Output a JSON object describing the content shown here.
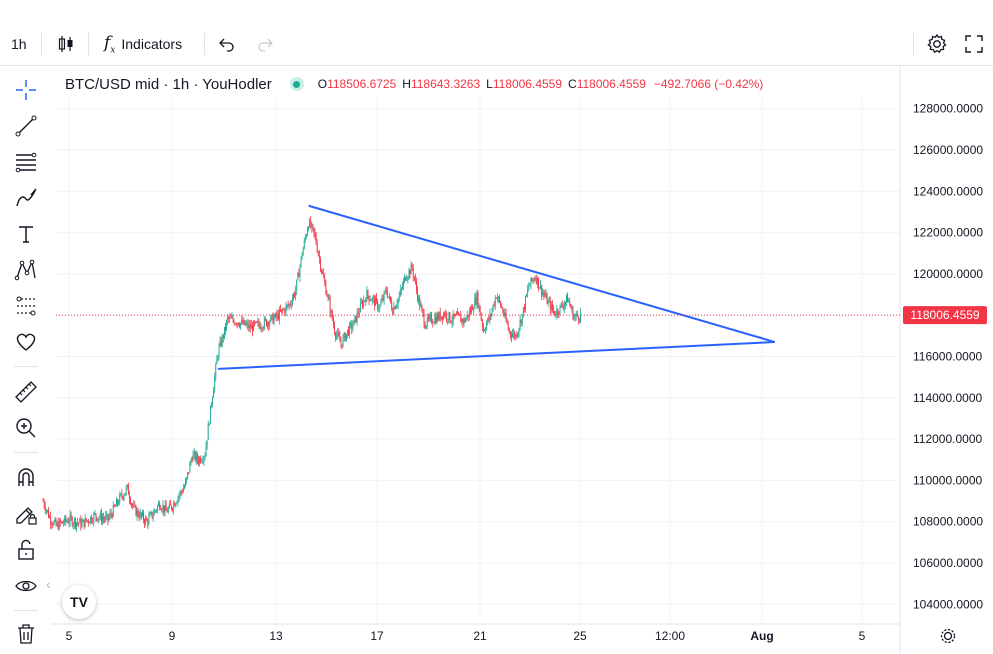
{
  "toolbar": {
    "interval": "1h",
    "indicators_label": "Indicators"
  },
  "legend": {
    "symbol": "BTC/USD mid · 1h · YouHodler",
    "open_key": "O",
    "open": "118506.6725",
    "high_key": "H",
    "high": "118643.3263",
    "low_key": "L",
    "low": "118006.4559",
    "close_key": "C",
    "close": "118006.4559",
    "change": "−492.7066 (−0.42%)"
  },
  "colors": {
    "up": "#22ab94",
    "down": "#f23645",
    "trendline": "#2962ff",
    "price_line": "#f23645"
  },
  "chart_data": {
    "type": "candlestick",
    "symbol": "BTC/USD",
    "interval": "1h",
    "x_ticks": [
      "5",
      "9",
      "13",
      "17",
      "21",
      "25",
      "12:00",
      "Aug",
      "5"
    ],
    "y_ticks": [
      "128000.0000",
      "126000.0000",
      "124000.0000",
      "122000.0000",
      "120000.0000",
      "118000.0000",
      "116000.0000",
      "114000.0000",
      "112000.0000",
      "110000.0000",
      "108000.0000",
      "106000.0000",
      "104000.0000"
    ],
    "ylim": [
      103000,
      129000
    ],
    "last_price": 118006.4559,
    "last_price_label": "118006.4559",
    "close_path": [
      [
        "2025-07-04 00:00",
        109000
      ],
      [
        "2025-07-04 06:00",
        108200
      ],
      [
        "2025-07-04 12:00",
        107800
      ],
      [
        "2025-07-05 00:00",
        108100
      ],
      [
        "2025-07-05 12:00",
        107900
      ],
      [
        "2025-07-06 00:00",
        108300
      ],
      [
        "2025-07-06 12:00",
        108100
      ],
      [
        "2025-07-07 00:00",
        109200
      ],
      [
        "2025-07-07 06:00",
        109600
      ],
      [
        "2025-07-07 12:00",
        108600
      ],
      [
        "2025-07-07 18:00",
        108300
      ],
      [
        "2025-07-08 00:00",
        108000
      ],
      [
        "2025-07-08 06:00",
        108400
      ],
      [
        "2025-07-08 12:00",
        108900
      ],
      [
        "2025-07-08 18:00",
        108500
      ],
      [
        "2025-07-09 00:00",
        108800
      ],
      [
        "2025-07-09 06:00",
        109300
      ],
      [
        "2025-07-09 12:00",
        109800
      ],
      [
        "2025-07-09 18:00",
        111200
      ],
      [
        "2025-07-10 00:00",
        111000
      ],
      [
        "2025-07-10 06:00",
        111300
      ],
      [
        "2025-07-10 12:00",
        113800
      ],
      [
        "2025-07-10 18:00",
        116200
      ],
      [
        "2025-07-11 00:00",
        117200
      ],
      [
        "2025-07-11 03:00",
        117800
      ],
      [
        "2025-07-11 12:00",
        117700
      ],
      [
        "2025-07-12 00:00",
        117400
      ],
      [
        "2025-07-12 12:00",
        117600
      ],
      [
        "2025-07-13 00:00",
        117900
      ],
      [
        "2025-07-13 12:00",
        118500
      ],
      [
        "2025-07-13 18:00",
        119200
      ],
      [
        "2025-07-14 00:00",
        121000
      ],
      [
        "2025-07-14 06:00",
        122500
      ],
      [
        "2025-07-14 12:00",
        121800
      ],
      [
        "2025-07-14 18:00",
        120200
      ],
      [
        "2025-07-15 00:00",
        118800
      ],
      [
        "2025-07-15 06:00",
        117300
      ],
      [
        "2025-07-15 12:00",
        116600
      ],
      [
        "2025-07-15 18:00",
        117200
      ],
      [
        "2025-07-16 00:00",
        117600
      ],
      [
        "2025-07-16 06:00",
        118400
      ],
      [
        "2025-07-16 12:00",
        119000
      ],
      [
        "2025-07-16 18:00",
        118700
      ],
      [
        "2025-07-17 00:00",
        118400
      ],
      [
        "2025-07-17 06:00",
        119200
      ],
      [
        "2025-07-17 12:00",
        118300
      ],
      [
        "2025-07-17 18:00",
        118900
      ],
      [
        "2025-07-18 00:00",
        119900
      ],
      [
        "2025-07-18 06:00",
        120300
      ],
      [
        "2025-07-18 12:00",
        118700
      ],
      [
        "2025-07-18 18:00",
        117600
      ],
      [
        "2025-07-19 00:00",
        117800
      ],
      [
        "2025-07-19 06:00",
        117900
      ],
      [
        "2025-07-19 12:00",
        118100
      ],
      [
        "2025-07-19 18:00",
        117800
      ],
      [
        "2025-07-20 00:00",
        117900
      ],
      [
        "2025-07-20 06:00",
        117700
      ],
      [
        "2025-07-20 12:00",
        118200
      ],
      [
        "2025-07-20 18:00",
        118900
      ],
      [
        "2025-07-21 00:00",
        117300
      ],
      [
        "2025-07-21 06:00",
        117900
      ],
      [
        "2025-07-21 12:00",
        119000
      ],
      [
        "2025-07-21 18:00",
        118200
      ],
      [
        "2025-07-22 00:00",
        117200
      ],
      [
        "2025-07-22 06:00",
        117000
      ],
      [
        "2025-07-22 12:00",
        118000
      ],
      [
        "2025-07-22 18:00",
        119400
      ],
      [
        "2025-07-23 00:00",
        119900
      ],
      [
        "2025-07-23 06:00",
        119200
      ],
      [
        "2025-07-23 12:00",
        118600
      ],
      [
        "2025-07-23 18:00",
        118100
      ],
      [
        "2025-07-24 00:00",
        118400
      ],
      [
        "2025-07-24 06:00",
        118800
      ],
      [
        "2025-07-24 12:00",
        117900
      ],
      [
        "2025-07-24 18:00",
        118006.4559
      ]
    ],
    "trendlines": [
      {
        "from": [
          "2025-07-14 06:00",
          123300
        ],
        "to": [
          "2025-08-01 06:00",
          116700
        ]
      },
      {
        "from": [
          "2025-07-10 18:00",
          115400
        ],
        "to": [
          "2025-08-01 06:00",
          116700
        ]
      }
    ]
  }
}
